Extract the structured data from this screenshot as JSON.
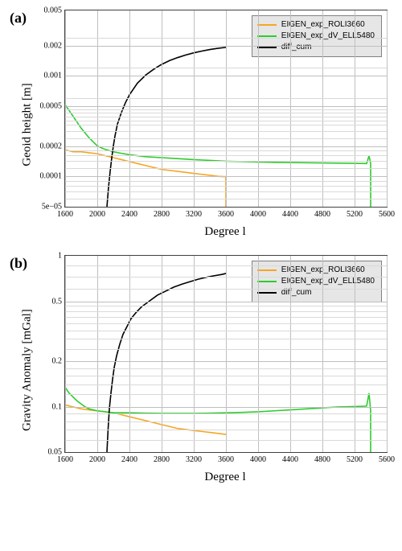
{
  "charts": {
    "a": {
      "panel_label": "(a)",
      "xlabel": "Degree l",
      "ylabel": "Geoid height [m]",
      "xlim": [
        1600,
        5600
      ],
      "xticks": [
        1600,
        2000,
        2400,
        2800,
        3200,
        3600,
        4000,
        4400,
        4800,
        5200,
        5600
      ],
      "ytick_labels": [
        "5e−05",
        "0.0001",
        "0.0002",
        "0.0005",
        "0.001",
        "0.002",
        "0.005"
      ],
      "ytick_positions_pct": [
        100,
        84.6,
        69.2,
        48.8,
        33.4,
        18.0,
        0
      ],
      "minor_ygrid_pct": [
        95.8,
        92.2,
        89.2,
        86.8,
        80.4,
        76.8,
        73.8,
        71.4,
        65.0,
        61.4,
        58.4,
        56.0,
        54.0,
        52.2,
        50.5,
        44.6,
        29.2,
        13.8
      ],
      "legend": [
        {
          "label": "EIGEN_exp_ROLI3660",
          "color": "#f5a623"
        },
        {
          "label": "EIGEN_exp_dV_ELL5480",
          "color": "#2ecc2e"
        },
        {
          "label": "diff_cum",
          "color": "#000000"
        }
      ],
      "series": {
        "roli": {
          "color": "#f5a623",
          "data": [
            [
              1600,
              71
            ],
            [
              1700,
              72
            ],
            [
              1800,
              72
            ],
            [
              1900,
              72.5
            ],
            [
              2000,
              73
            ],
            [
              2100,
              74
            ],
            [
              2200,
              75
            ],
            [
              2300,
              76
            ],
            [
              2400,
              77
            ],
            [
              2500,
              78
            ],
            [
              2600,
              79
            ],
            [
              2700,
              80
            ],
            [
              2800,
              81
            ],
            [
              2900,
              81.5
            ],
            [
              3000,
              82
            ],
            [
              3100,
              82.5
            ],
            [
              3200,
              83
            ],
            [
              3300,
              83.5
            ],
            [
              3400,
              84
            ],
            [
              3500,
              84.5
            ],
            [
              3599,
              84.7
            ],
            [
              3600,
              100
            ]
          ]
        },
        "ell": {
          "color": "#2ecc2e",
          "data": [
            [
              1600,
              48
            ],
            [
              1650,
              51
            ],
            [
              1700,
              54
            ],
            [
              1750,
              57
            ],
            [
              1800,
              60
            ],
            [
              1850,
              62.5
            ],
            [
              1900,
              65
            ],
            [
              1950,
              67
            ],
            [
              2000,
              69
            ],
            [
              2050,
              70
            ],
            [
              2100,
              70.8
            ],
            [
              2200,
              72
            ],
            [
              2300,
              72.8
            ],
            [
              2400,
              73.5
            ],
            [
              2600,
              74.5
            ],
            [
              2800,
              75
            ],
            [
              3000,
              75.5
            ],
            [
              3200,
              76
            ],
            [
              3400,
              76.4
            ],
            [
              3600,
              76.8
            ],
            [
              3800,
              77
            ],
            [
              4000,
              77.2
            ],
            [
              4200,
              77.4
            ],
            [
              4400,
              77.5
            ],
            [
              4600,
              77.6
            ],
            [
              4800,
              77.7
            ],
            [
              5000,
              77.8
            ],
            [
              5200,
              77.9
            ],
            [
              5350,
              78
            ],
            [
              5380,
              74
            ],
            [
              5400,
              78
            ],
            [
              5400,
              100
            ]
          ]
        },
        "diff": {
          "color": "#000000",
          "data": [
            [
              2120,
              100
            ],
            [
              2140,
              90
            ],
            [
              2160,
              82
            ],
            [
              2180,
              75
            ],
            [
              2200,
              69
            ],
            [
              2220,
              64
            ],
            [
              2250,
              58
            ],
            [
              2300,
              52
            ],
            [
              2350,
              47
            ],
            [
              2400,
              43
            ],
            [
              2450,
              40
            ],
            [
              2500,
              37
            ],
            [
              2550,
              35
            ],
            [
              2600,
              33
            ],
            [
              2700,
              30
            ],
            [
              2800,
              27.5
            ],
            [
              2900,
              25.5
            ],
            [
              3000,
              24
            ],
            [
              3100,
              22.7
            ],
            [
              3200,
              21.6
            ],
            [
              3300,
              20.7
            ],
            [
              3400,
              19.9
            ],
            [
              3500,
              19.3
            ],
            [
              3600,
              18.8
            ]
          ]
        }
      }
    },
    "b": {
      "panel_label": "(b)",
      "xlabel": "Degree l",
      "ylabel": "Gravity Anomaly [mGal]",
      "xlim": [
        1600,
        5600
      ],
      "xticks": [
        1600,
        2000,
        2400,
        2800,
        3200,
        3600,
        4000,
        4400,
        4800,
        5200,
        5600
      ],
      "ytick_labels": [
        "0.05",
        "0.1",
        "0.2",
        "0.5",
        "1"
      ],
      "ytick_positions_pct": [
        100,
        76.9,
        53.8,
        23.2,
        0
      ],
      "minor_ygrid_pct": [
        93.8,
        88.6,
        84.4,
        80.2,
        70.5,
        65.4,
        61.0,
        57.2,
        47.4,
        42.2,
        38.0,
        34.4,
        31.2,
        28.4,
        25.6,
        17.0,
        10.6,
        5.0
      ],
      "legend": [
        {
          "label": "EIGEN_exp_ROLI3660",
          "color": "#f5a623"
        },
        {
          "label": "EIGEN_exp_dV_ELL5480",
          "color": "#2ecc2e"
        },
        {
          "label": "diff_cum",
          "color": "#000000"
        }
      ],
      "series": {
        "roli": {
          "color": "#f5a623",
          "data": [
            [
              1600,
              76
            ],
            [
              1700,
              77
            ],
            [
              1800,
              78
            ],
            [
              1900,
              78.5
            ],
            [
              2000,
              79
            ],
            [
              2100,
              79.5
            ],
            [
              2200,
              80
            ],
            [
              2300,
              81
            ],
            [
              2400,
              82
            ],
            [
              2500,
              83
            ],
            [
              2600,
              84
            ],
            [
              2700,
              85
            ],
            [
              2800,
              86
            ],
            [
              2900,
              87
            ],
            [
              3000,
              88
            ],
            [
              3100,
              88.5
            ],
            [
              3200,
              89
            ],
            [
              3300,
              89.5
            ],
            [
              3400,
              90
            ],
            [
              3500,
              90.5
            ],
            [
              3599,
              91
            ],
            [
              3600,
              91
            ]
          ]
        },
        "ell": {
          "color": "#2ecc2e",
          "data": [
            [
              1600,
              67
            ],
            [
              1650,
              70
            ],
            [
              1700,
              72
            ],
            [
              1750,
              74
            ],
            [
              1800,
              75.5
            ],
            [
              1850,
              77
            ],
            [
              1900,
              78
            ],
            [
              1950,
              78.5
            ],
            [
              2000,
              79
            ],
            [
              2100,
              79.5
            ],
            [
              2200,
              80
            ],
            [
              2300,
              80
            ],
            [
              2400,
              80
            ],
            [
              2600,
              80.2
            ],
            [
              2800,
              80.3
            ],
            [
              3000,
              80.3
            ],
            [
              3200,
              80.3
            ],
            [
              3400,
              80.2
            ],
            [
              3600,
              80
            ],
            [
              3800,
              79.8
            ],
            [
              4000,
              79.5
            ],
            [
              4200,
              79
            ],
            [
              4400,
              78.5
            ],
            [
              4600,
              78
            ],
            [
              4800,
              77.5
            ],
            [
              5000,
              77
            ],
            [
              5200,
              76.8
            ],
            [
              5350,
              76.6
            ],
            [
              5380,
              70
            ],
            [
              5400,
              79
            ],
            [
              5400,
              100
            ]
          ]
        },
        "diff": {
          "color": "#000000",
          "data": [
            [
              2120,
              100
            ],
            [
              2135,
              88
            ],
            [
              2150,
              78
            ],
            [
              2170,
              70
            ],
            [
              2190,
              63
            ],
            [
              2210,
              57
            ],
            [
              2240,
              51
            ],
            [
              2280,
              45
            ],
            [
              2320,
              40
            ],
            [
              2370,
              36
            ],
            [
              2420,
              32
            ],
            [
              2480,
              29
            ],
            [
              2550,
              26
            ],
            [
              2650,
              23
            ],
            [
              2750,
              20
            ],
            [
              2850,
              18
            ],
            [
              2950,
              16
            ],
            [
              3050,
              14.5
            ],
            [
              3150,
              13.2
            ],
            [
              3250,
              12
            ],
            [
              3350,
              11
            ],
            [
              3450,
              10.2
            ],
            [
              3550,
              9.5
            ],
            [
              3600,
              9
            ]
          ]
        }
      }
    }
  }
}
